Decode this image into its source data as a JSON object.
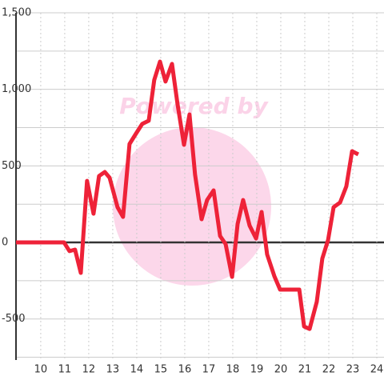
{
  "chart_data": {
    "type": "line",
    "watermark": "Powered by",
    "xlim": [
      8.97,
      24.3
    ],
    "xticks": [
      10,
      11,
      12,
      13,
      14,
      15,
      16,
      17,
      18,
      19,
      20,
      21,
      22,
      23,
      24
    ],
    "ylim": [
      -768,
      1500
    ],
    "yticks": [
      {
        "value": 1500,
        "label": "1,500"
      },
      {
        "value": 1000,
        "label": "1,000"
      },
      500,
      0,
      -500
    ],
    "y_minor_ticks": [
      1250,
      750,
      250,
      -250,
      -750
    ],
    "grid": true,
    "series": [
      {
        "color": "#ee2238",
        "x": [
          8.97,
          10.97,
          11.2,
          11.43,
          11.67,
          11.93,
          12.2,
          12.43,
          12.67,
          12.87,
          13.2,
          13.43,
          13.7,
          13.97,
          14.23,
          14.5,
          14.73,
          14.97,
          15.2,
          15.47,
          15.7,
          15.97,
          16.2,
          16.43,
          16.7,
          16.93,
          17.2,
          17.47,
          17.7,
          17.97,
          18.2,
          18.43,
          18.7,
          18.97,
          19.2,
          19.43,
          19.73,
          19.97,
          20.77,
          20.97,
          21.2,
          21.5,
          21.73,
          21.97,
          22.2,
          22.47,
          22.73,
          22.97,
          23.23
        ],
        "values": [
          0,
          0,
          -57,
          -47,
          -199,
          402,
          188,
          434,
          460,
          423,
          230,
          167,
          643,
          711,
          774,
          795,
          1061,
          1181,
          1051,
          1166,
          904,
          638,
          836,
          444,
          152,
          277,
          340,
          42,
          -10,
          -225,
          120,
          277,
          110,
          26,
          199,
          -78,
          -220,
          -308,
          -308,
          -549,
          -565,
          -387,
          -105,
          16,
          230,
          261,
          366,
          596,
          575
        ]
      }
    ]
  }
}
